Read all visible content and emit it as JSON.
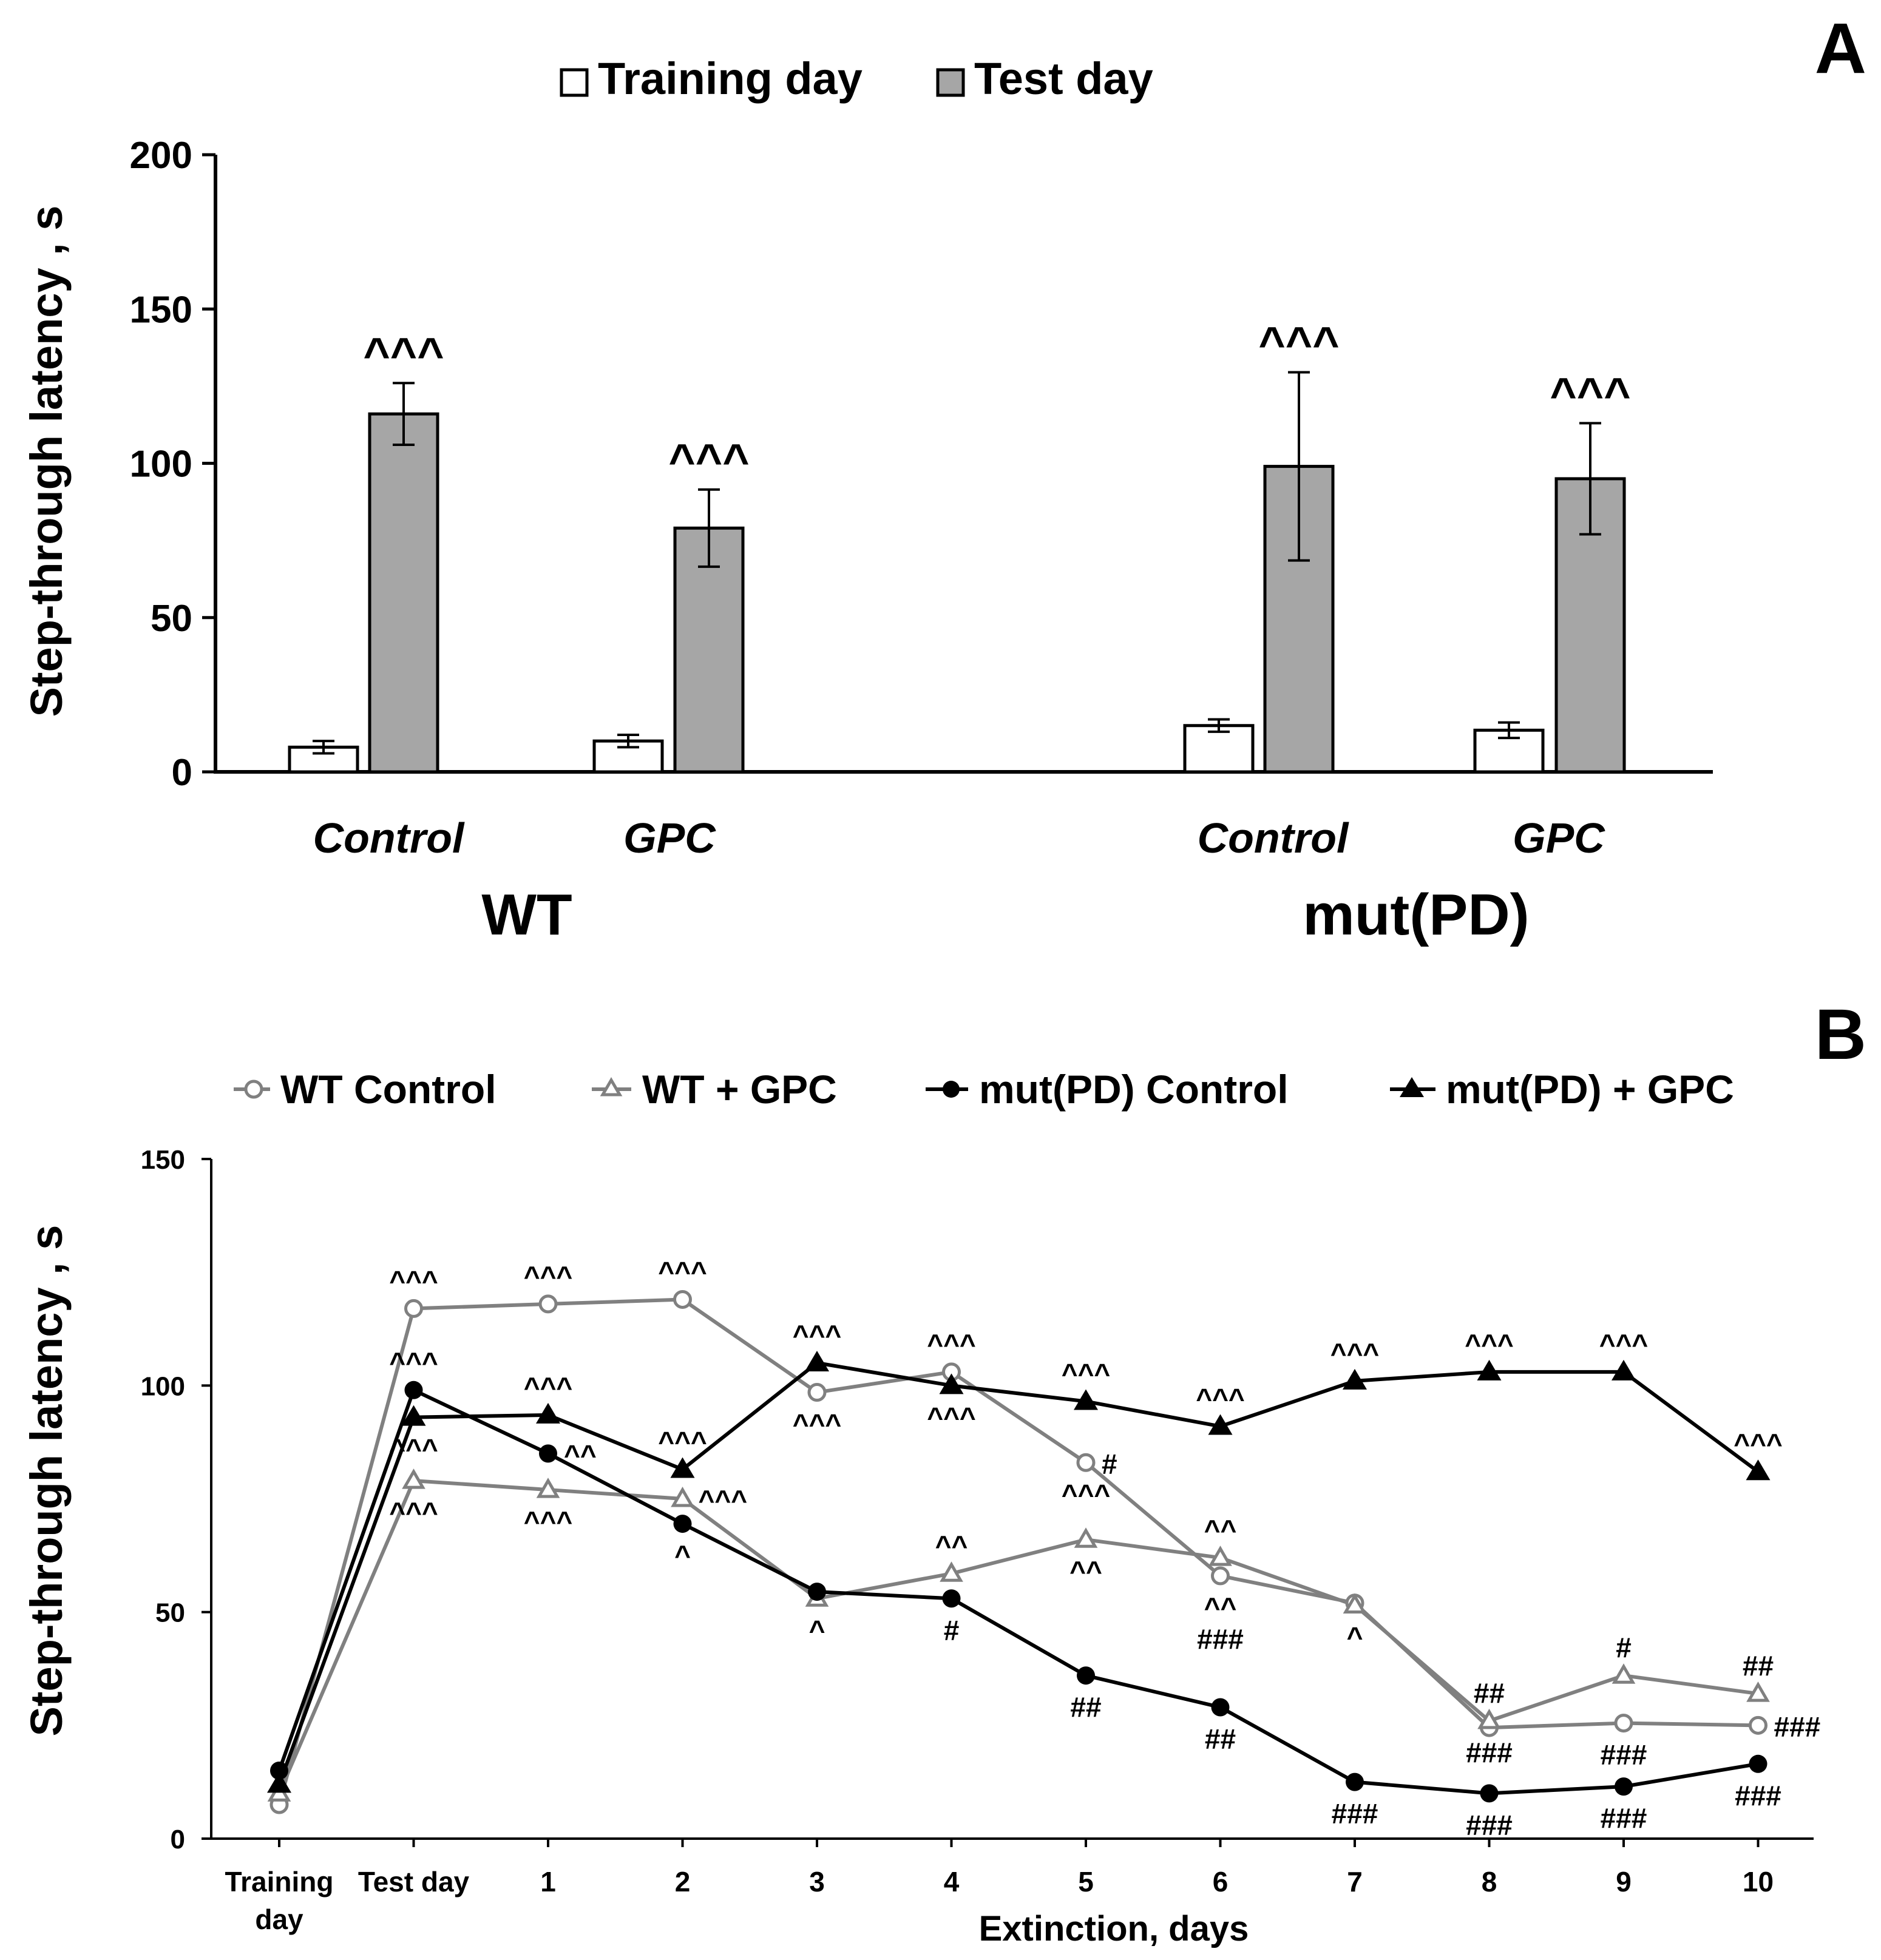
{
  "chart_data": [
    {
      "panel": "A",
      "type": "bar",
      "ylabel": "Step-through latency , s",
      "ylim": [
        0,
        200
      ],
      "yticks": [
        0,
        50,
        100,
        150,
        200
      ],
      "legend": [
        {
          "name": "Training day",
          "color": "#ffffff"
        },
        {
          "name": "Test day",
          "color": "#a6a6a6"
        }
      ],
      "groups": [
        {
          "label": "WT",
          "items": [
            {
              "label": "Control",
              "training": 8,
              "training_err": 2,
              "test": 116,
              "test_err": 10,
              "test_mark": "^^^"
            },
            {
              "label": "GPC",
              "training": 10,
              "training_err": 2,
              "test": 79,
              "test_err": 12.5,
              "test_mark": "^^^"
            }
          ]
        },
        {
          "label": "mut(PD)",
          "items": [
            {
              "label": "Control",
              "training": 15,
              "training_err": 2,
              "test": 99,
              "test_err": 30.5,
              "test_mark": "^^^"
            },
            {
              "label": "GPC",
              "training": 13.5,
              "training_err": 2.5,
              "test": 95,
              "test_err": 18,
              "test_mark": "^^^"
            }
          ]
        }
      ]
    },
    {
      "panel": "B",
      "type": "line",
      "ylabel": "Step-through latency , s",
      "xlabel": "Extinction, days",
      "ylim": [
        0,
        150
      ],
      "yticks": [
        0,
        50,
        100,
        150
      ],
      "categories": [
        [
          "Training",
          "day"
        ],
        [
          "Test day"
        ],
        [
          "1"
        ],
        [
          "2"
        ],
        [
          "3"
        ],
        [
          "4"
        ],
        [
          "5"
        ],
        [
          "6"
        ],
        [
          "7"
        ],
        [
          "8"
        ],
        [
          "9"
        ],
        [
          "10"
        ]
      ],
      "series": [
        {
          "name": "WT Control",
          "color": "#808080",
          "marker": "circle-open",
          "values": [
            7.5,
            117,
            118,
            119,
            98.5,
            103,
            83,
            58,
            52,
            24.5,
            25.5,
            25
          ],
          "marks": [
            {
              "i": 1,
              "text": "^^^",
              "pos": "above"
            },
            {
              "i": 2,
              "text": "^^^",
              "pos": "above"
            },
            {
              "i": 3,
              "text": "^^^",
              "pos": "above"
            },
            {
              "i": 4,
              "text": "^^^",
              "pos": "below"
            },
            {
              "i": 5,
              "text": "^^^",
              "pos": "above"
            },
            {
              "i": 6,
              "text": "#",
              "pos": "right"
            },
            {
              "i": 6,
              "text": "^^^",
              "pos": "below"
            },
            {
              "i": 7,
              "text": "^^",
              "pos": "below"
            },
            {
              "i": 7,
              "text": "###",
              "pos": "below2"
            },
            {
              "i": 10,
              "text": "###",
              "pos": "below"
            },
            {
              "i": 11,
              "text": "###",
              "pos": "right"
            }
          ]
        },
        {
          "name": "WT + GPC",
          "color": "#808080",
          "marker": "triangle-open",
          "values": [
            10,
            79,
            77,
            75,
            53,
            58.5,
            66,
            62,
            51.5,
            26,
            36,
            32
          ],
          "marks": [
            {
              "i": 1,
              "text": "^^^",
              "pos": "below"
            },
            {
              "i": 2,
              "text": "^^^",
              "pos": "below"
            },
            {
              "i": 3,
              "text": "^^^",
              "pos": "right"
            },
            {
              "i": 4,
              "text": "^",
              "pos": "below"
            },
            {
              "i": 5,
              "text": "^^",
              "pos": "above"
            },
            {
              "i": 6,
              "text": "^^",
              "pos": "below"
            },
            {
              "i": 7,
              "text": "^^",
              "pos": "above"
            },
            {
              "i": 8,
              "text": "^",
              "pos": "below"
            },
            {
              "i": 9,
              "text": "##",
              "pos": "above"
            },
            {
              "i": 9,
              "text": "###",
              "pos": "below"
            },
            {
              "i": 10,
              "text": "#",
              "pos": "above"
            },
            {
              "i": 11,
              "text": "##",
              "pos": "above"
            }
          ]
        },
        {
          "name": "mut(PD) Control",
          "color": "#000000",
          "marker": "circle-filled",
          "values": [
            15,
            99,
            85,
            69.5,
            54.5,
            53,
            36,
            29,
            12.5,
            10,
            11.5,
            16.5
          ],
          "marks": [
            {
              "i": 1,
              "text": "^^^",
              "pos": "above"
            },
            {
              "i": 2,
              "text": "^^",
              "pos": "right"
            },
            {
              "i": 3,
              "text": "^",
              "pos": "below"
            },
            {
              "i": 5,
              "text": "#",
              "pos": "below"
            },
            {
              "i": 6,
              "text": "##",
              "pos": "below"
            },
            {
              "i": 7,
              "text": "##",
              "pos": "below"
            },
            {
              "i": 8,
              "text": "###",
              "pos": "below"
            },
            {
              "i": 9,
              "text": "###",
              "pos": "below"
            },
            {
              "i": 10,
              "text": "###",
              "pos": "below"
            },
            {
              "i": 11,
              "text": "###",
              "pos": "below"
            }
          ]
        },
        {
          "name": "mut(PD) + GPC",
          "color": "#000000",
          "marker": "triangle-filled",
          "values": [
            12,
            93,
            93.5,
            81.5,
            105,
            100,
            96.5,
            91,
            101,
            103,
            103,
            81
          ],
          "marks": [
            {
              "i": 1,
              "text": "^^^",
              "pos": "below"
            },
            {
              "i": 2,
              "text": "^^^",
              "pos": "above"
            },
            {
              "i": 3,
              "text": "^^^",
              "pos": "above"
            },
            {
              "i": 4,
              "text": "^^^",
              "pos": "above"
            },
            {
              "i": 5,
              "text": "^^^",
              "pos": "below"
            },
            {
              "i": 6,
              "text": "^^^",
              "pos": "above"
            },
            {
              "i": 7,
              "text": "^^^",
              "pos": "above"
            },
            {
              "i": 8,
              "text": "^^^",
              "pos": "above"
            },
            {
              "i": 9,
              "text": "^^^",
              "pos": "above"
            },
            {
              "i": 10,
              "text": "^^^",
              "pos": "above"
            },
            {
              "i": 11,
              "text": "^^^",
              "pos": "above"
            }
          ]
        }
      ]
    }
  ]
}
